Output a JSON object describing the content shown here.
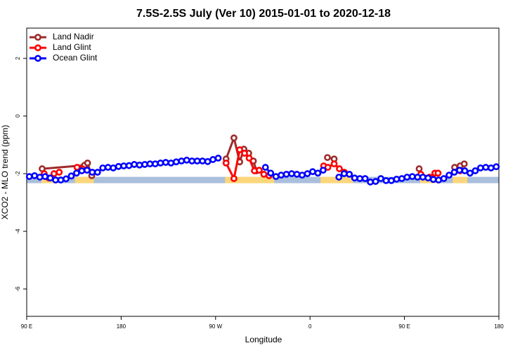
{
  "chart_data": {
    "type": "line",
    "title": "7.5S-2.5S July (Ver 10)   2015-01-01 to 2020-12-18",
    "xlabel": "Longitude",
    "ylabel": "XCO2 - MLO trend (ppm)",
    "xlim": [
      90,
      540
    ],
    "ylim": [
      -6.95,
      3.05
    ],
    "xticks": [
      {
        "value": 90,
        "label": "90 E"
      },
      180,
      {
        "value": 270,
        "label": "90 W"
      },
      {
        "value": 360,
        "label": "0"
      },
      {
        "value": 450,
        "label": "90 E"
      },
      {
        "value": 540,
        "label": "180"
      }
    ],
    "yticks": [
      -6,
      -4,
      -2,
      0,
      2
    ],
    "legend": "top-left",
    "band": {
      "value": -2.22,
      "color": "#a9bfdc",
      "land_color": "#fcd67a",
      "land_spans": [
        [
          104,
          118
        ],
        [
          136,
          154
        ],
        [
          279,
          326
        ],
        [
          370,
          401
        ],
        [
          465,
          484
        ],
        [
          496,
          510
        ]
      ]
    },
    "series": [
      {
        "name": "Land Nadir",
        "color": "#9e2b2b",
        "x": [
          104.7,
          145,
          148,
          152,
          null,
          280,
          287.5,
          293,
          297,
          301.6,
          306,
          309,
          null,
          376.6,
          383,
          null,
          464,
          null,
          497.8,
          503,
          507
        ],
        "values": [
          -1.83,
          -1.71,
          -1.63,
          -2.07,
          null,
          -1.49,
          -0.76,
          -1.59,
          -1.15,
          -1.29,
          -1.56,
          -1.9,
          null,
          -1.44,
          -1.49,
          null,
          -1.83,
          null,
          -1.78,
          -1.73,
          -1.66
        ]
      },
      {
        "name": "Land Glint",
        "color": "#ff0000",
        "x": [
          106.7,
          111,
          116,
          121,
          null,
          138,
          143,
          null,
          280,
          287.5,
          293,
          297.6,
          302,
          307,
          311.6,
          316,
          321,
          null,
          373,
          377,
          383,
          388,
          392.7,
          null,
          465.6,
          474,
          479,
          482,
          null,
          503
        ],
        "values": [
          -2.0,
          -2.15,
          -2.0,
          -1.95,
          null,
          -1.78,
          -1.83,
          null,
          -1.63,
          -2.17,
          -1.17,
          -1.29,
          -1.46,
          -1.9,
          -1.88,
          -2.02,
          -2.07,
          null,
          -1.73,
          -1.78,
          -1.66,
          -1.83,
          -1.95,
          null,
          -2.02,
          -2.12,
          -1.98,
          -1.98,
          null,
          -1.9
        ]
      },
      {
        "name": "Ocean Glint",
        "color": "#0000ff",
        "x": [
          92.5,
          97.5,
          102.5,
          107.5,
          112.5,
          117.5,
          122.5,
          127.5,
          132.5,
          137.5,
          142.5,
          147.5,
          152.5,
          157.5,
          162.5,
          167.5,
          172.5,
          177.5,
          182.5,
          187.5,
          192.5,
          197.5,
          202.5,
          207.5,
          212.5,
          217.5,
          222.5,
          227.5,
          232.5,
          237.5,
          242.5,
          247.5,
          252.5,
          257.5,
          262.5,
          267.5,
          272.5,
          null,
          317.5,
          322.5,
          327.5,
          332.5,
          337.5,
          342.5,
          347.5,
          352.5,
          357.5,
          362.5,
          367.5,
          372.5,
          null,
          387.5,
          392.5,
          397.5,
          402.5,
          407.5,
          412.5,
          417.5,
          422.5,
          427.5,
          432.5,
          437.5,
          442.5,
          447.5,
          452.5,
          457.5,
          462.5,
          467.5,
          472.5,
          477.5,
          482.5,
          487.5,
          492.5,
          497.5,
          502.5,
          507.5,
          512.5,
          517.5,
          522.5,
          527.5,
          532.5,
          537.5
        ],
        "values": [
          -2.1,
          -2.07,
          -2.12,
          -2.1,
          -2.15,
          -2.22,
          -2.22,
          -2.18,
          -2.08,
          -1.98,
          -1.9,
          -1.88,
          -1.95,
          -1.95,
          -1.8,
          -1.78,
          -1.8,
          -1.75,
          -1.73,
          -1.72,
          -1.68,
          -1.7,
          -1.68,
          -1.66,
          -1.66,
          -1.63,
          -1.61,
          -1.63,
          -1.59,
          -1.56,
          -1.53,
          -1.56,
          -1.56,
          -1.56,
          -1.58,
          -1.51,
          -1.46,
          null,
          -1.78,
          -1.98,
          -2.1,
          -2.05,
          -2.02,
          -2.0,
          -2.02,
          -2.05,
          -2.0,
          -1.93,
          -1.98,
          -1.88,
          null,
          -2.12,
          -2.0,
          -2.02,
          -2.15,
          -2.17,
          -2.17,
          -2.29,
          -2.27,
          -2.17,
          -2.24,
          -2.24,
          -2.19,
          -2.17,
          -2.12,
          -2.1,
          -2.12,
          -2.12,
          -2.15,
          -2.2,
          -2.22,
          -2.17,
          -2.05,
          -1.95,
          -1.88,
          -1.9,
          -1.98,
          -1.9,
          -1.8,
          -1.78,
          -1.8,
          -1.76
        ]
      }
    ]
  }
}
